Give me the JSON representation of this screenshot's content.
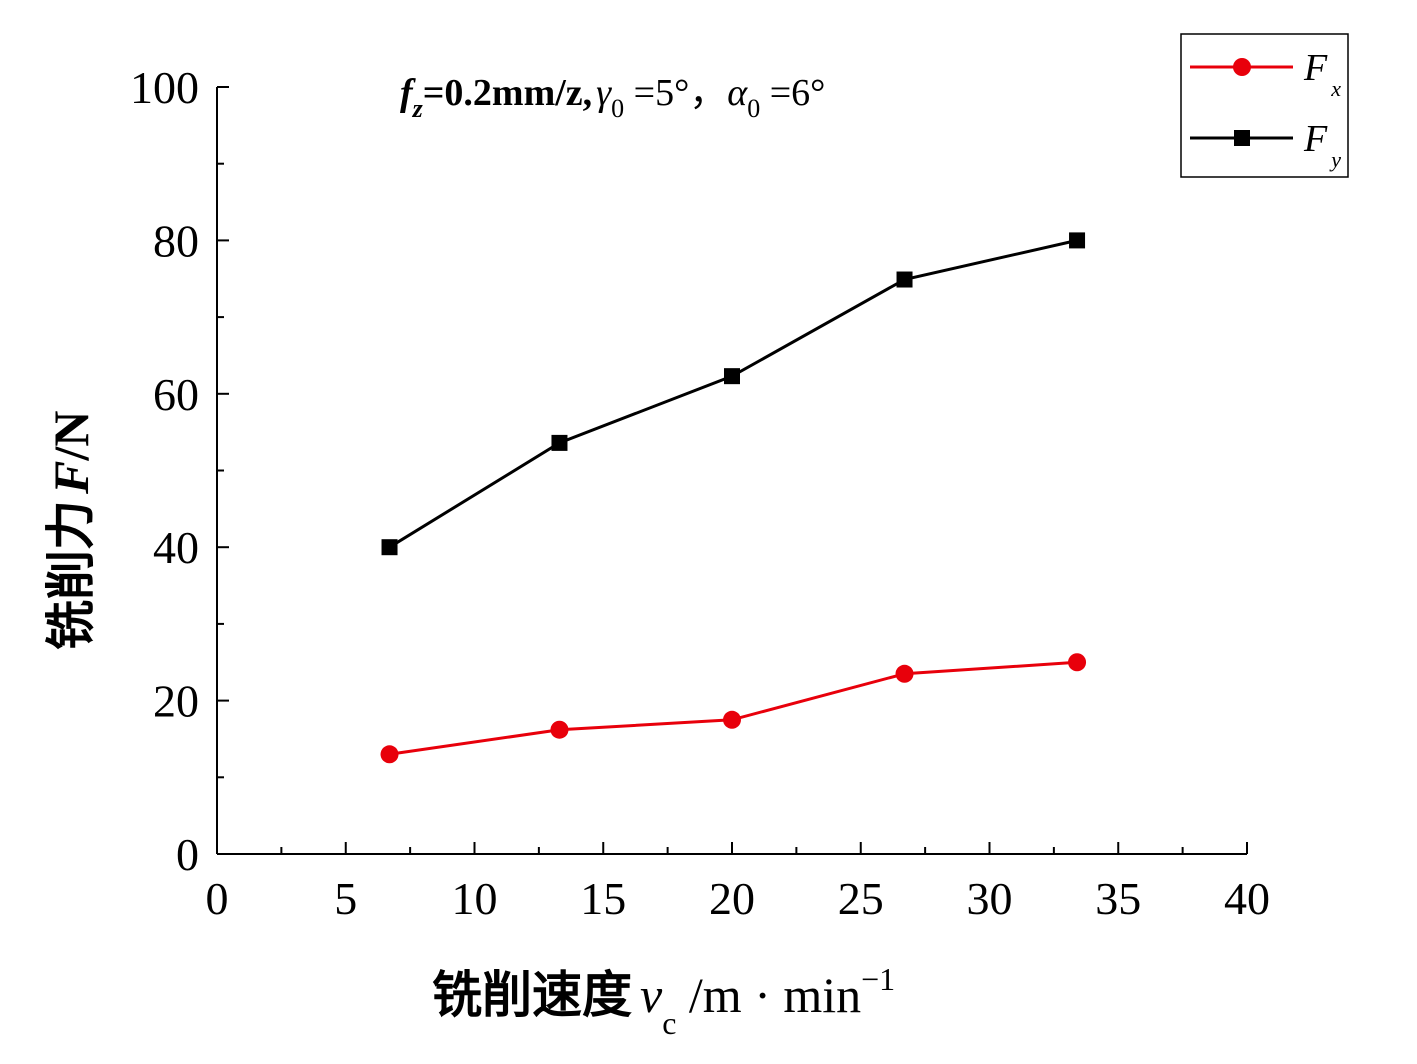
{
  "chart_data": {
    "type": "line",
    "title": "",
    "annotation": {
      "f_sym": "f",
      "f_sub": "z",
      "f_rest": "=0.2mm/z,",
      "gamma_sym": "γ",
      "gamma_sub": "0",
      "gamma_rest": " =5°，",
      "alpha_sym": "α",
      "alpha_sub": "0",
      "alpha_rest": " =6°"
    },
    "xlabel": {
      "text": "铣削速度",
      "var": "v",
      "sub": "c",
      "unit": " /m · min",
      "sup": "−1"
    },
    "ylabel": {
      "text": "铣削力",
      "var": "F",
      "unit": "/N"
    },
    "xlim": [
      0,
      40
    ],
    "ylim": [
      0,
      100
    ],
    "xticks": [
      "0",
      "5",
      "10",
      "15",
      "20",
      "25",
      "30",
      "35",
      "40"
    ],
    "yticks": [
      "0",
      "20",
      "40",
      "60",
      "80",
      "100"
    ],
    "grid": false,
    "legend_position": "top-right",
    "series": [
      {
        "name": "F",
        "name_sub": "x",
        "color": "#e8000b",
        "marker": "circle",
        "x": [
          6.7,
          13.3,
          20.0,
          26.7,
          33.4
        ],
        "y": [
          13.0,
          16.2,
          17.5,
          23.5,
          25.0
        ]
      },
      {
        "name": "F",
        "name_sub": "y",
        "color": "#000000",
        "marker": "square",
        "x": [
          6.7,
          13.3,
          20.0,
          26.7,
          33.4
        ],
        "y": [
          40.0,
          53.6,
          62.3,
          74.9,
          80.0
        ]
      }
    ]
  }
}
